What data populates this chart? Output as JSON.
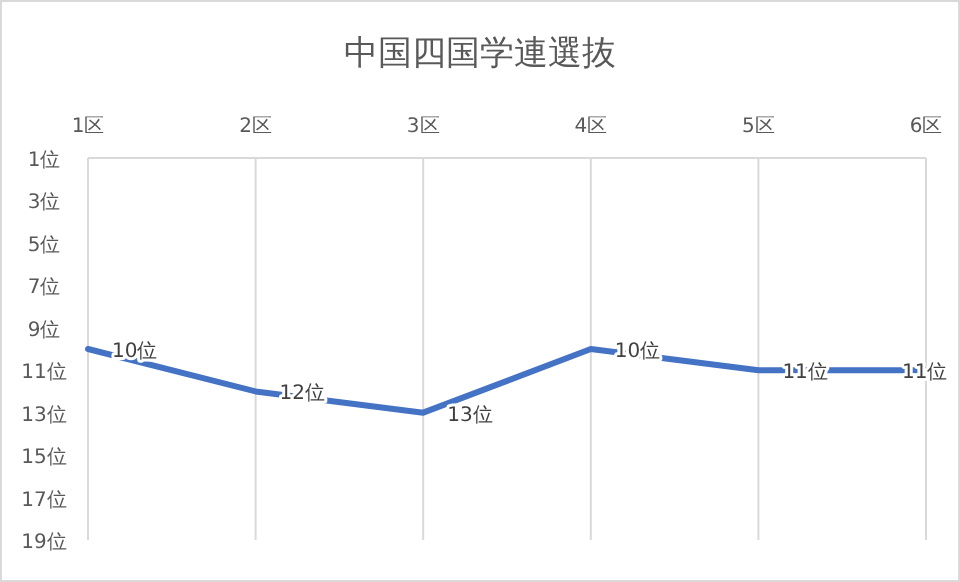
{
  "chart_data": {
    "type": "line",
    "title": "中国四国学連選抜",
    "categories": [
      "1区",
      "2区",
      "3区",
      "4区",
      "5区",
      "6区"
    ],
    "series": [
      {
        "color": "#4472c4",
        "values": [
          10,
          12,
          13,
          10,
          11,
          11
        ],
        "value_labels": [
          "10位",
          "12位",
          "13位",
          "10位",
          "11位",
          "11位"
        ]
      }
    ],
    "ylim": [
      19,
      1
    ],
    "yticks": [
      {
        "value": 1,
        "label": "1位"
      },
      {
        "value": 3,
        "label": "3位"
      },
      {
        "value": 5,
        "label": "5位"
      },
      {
        "value": 7,
        "label": "7位"
      },
      {
        "value": 9,
        "label": "9位"
      },
      {
        "value": 11,
        "label": "11位"
      },
      {
        "value": 13,
        "label": "13位"
      },
      {
        "value": 15,
        "label": "15位"
      },
      {
        "value": 17,
        "label": "17位"
      },
      {
        "value": 19,
        "label": "19位"
      }
    ],
    "grid": "x",
    "marker": "none",
    "line_style": "solid"
  }
}
